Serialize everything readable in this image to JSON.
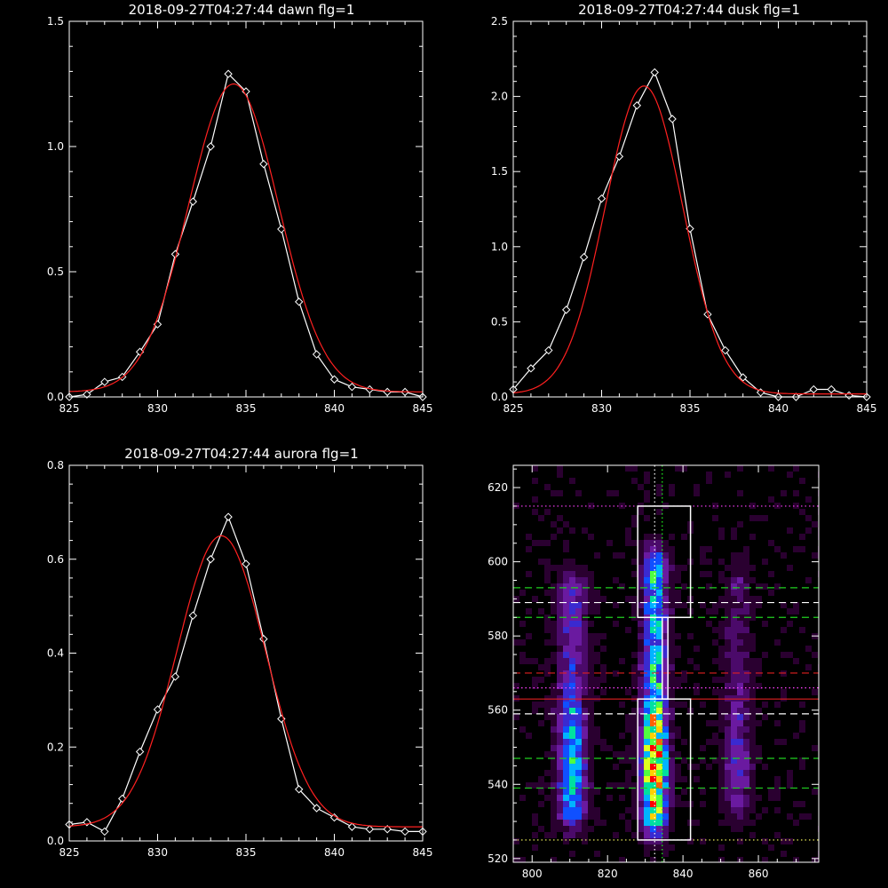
{
  "chart_data": [
    {
      "id": "dawn",
      "type": "line",
      "title": "2018-09-27T04:27:44 dawn flg=1",
      "xlim": [
        825,
        845
      ],
      "ylim": [
        0,
        1.5
      ],
      "xticks": [
        "825",
        "830",
        "835",
        "840",
        "845"
      ],
      "yticks": [
        "0.0",
        "0.5",
        "1.0",
        "1.5"
      ],
      "series": [
        {
          "kind": "observed",
          "color": "#ffffff",
          "marker": "diamond",
          "x": [
            825,
            826,
            827,
            828,
            829,
            830,
            831,
            832,
            833,
            834,
            835,
            836,
            837,
            838,
            839,
            840,
            841,
            842,
            843,
            844,
            845
          ],
          "y": [
            0.0,
            0.01,
            0.06,
            0.08,
            0.18,
            0.29,
            0.57,
            0.78,
            1.0,
            1.29,
            1.22,
            0.93,
            0.67,
            0.38,
            0.17,
            0.07,
            0.04,
            0.03,
            0.02,
            0.02,
            0.0
          ]
        },
        {
          "kind": "fit",
          "color": "#ff2020",
          "gauss": {
            "amp": 1.23,
            "center": 834.3,
            "sigma": 2.55,
            "offset": 0.02
          }
        }
      ]
    },
    {
      "id": "dusk",
      "type": "line",
      "title": "2018-09-27T04:27:44 dusk flg=1",
      "xlim": [
        825,
        845
      ],
      "ylim": [
        0,
        2.5
      ],
      "xticks": [
        "825",
        "830",
        "835",
        "840",
        "845"
      ],
      "yticks": [
        "0.0",
        "0.5",
        "1.0",
        "1.5",
        "2.0",
        "2.5"
      ],
      "series": [
        {
          "kind": "observed",
          "color": "#ffffff",
          "marker": "diamond",
          "x": [
            825,
            826,
            827,
            828,
            829,
            830,
            831,
            832,
            833,
            834,
            835,
            836,
            837,
            838,
            839,
            840,
            841,
            842,
            843,
            844,
            845
          ],
          "y": [
            0.05,
            0.19,
            0.31,
            0.58,
            0.93,
            1.32,
            1.6,
            1.94,
            2.16,
            1.85,
            1.12,
            0.55,
            0.31,
            0.13,
            0.03,
            0.0,
            0.0,
            0.05,
            0.05,
            0.01,
            0.0
          ]
        },
        {
          "kind": "fit",
          "color": "#ff2020",
          "gauss": {
            "amp": 2.05,
            "center": 832.4,
            "sigma": 2.2,
            "offset": 0.02
          }
        }
      ]
    },
    {
      "id": "aurora",
      "type": "line",
      "title": "2018-09-27T04:27:44 aurora flg=1",
      "xlim": [
        825,
        845
      ],
      "ylim": [
        0,
        0.8
      ],
      "xticks": [
        "825",
        "830",
        "835",
        "840",
        "845"
      ],
      "yticks": [
        "0.0",
        "0.2",
        "0.4",
        "0.6",
        "0.8"
      ],
      "series": [
        {
          "kind": "observed",
          "color": "#ffffff",
          "marker": "diamond",
          "x": [
            825,
            826,
            827,
            828,
            829,
            830,
            831,
            832,
            833,
            834,
            835,
            836,
            837,
            838,
            839,
            840,
            841,
            842,
            843,
            844,
            845
          ],
          "y": [
            0.035,
            0.04,
            0.02,
            0.09,
            0.19,
            0.28,
            0.35,
            0.48,
            0.6,
            0.69,
            0.59,
            0.43,
            0.26,
            0.11,
            0.07,
            0.05,
            0.03,
            0.025,
            0.025,
            0.02,
            0.02
          ]
        },
        {
          "kind": "fit",
          "color": "#ff2020",
          "gauss": {
            "amp": 0.62,
            "center": 833.6,
            "sigma": 2.5,
            "offset": 0.03
          }
        }
      ]
    },
    {
      "id": "image",
      "type": "heatmap",
      "xlim": [
        795,
        876
      ],
      "ylim": [
        519,
        626
      ],
      "xticks": [
        "800",
        "820",
        "840",
        "860"
      ],
      "yticks": [
        "520",
        "540",
        "560",
        "580",
        "600",
        "620"
      ],
      "colormap": [
        "#000000",
        "#2a0030",
        "#4b0a6a",
        "#6a1aa0",
        "#3a2ad0",
        "#1050ff",
        "#00b4ff",
        "#00e0a0",
        "#50ff40",
        "#e0ff20",
        "#ffd000",
        "#ff6000",
        "#ff0000"
      ],
      "bands": [
        {
          "x": 810.5,
          "w": 2.6,
          "y0": 527,
          "y1": 598,
          "peak": 0.55
        },
        {
          "x": 832.5,
          "w": 2.3,
          "y0": 525,
          "y1": 604,
          "peak": 0.95
        },
        {
          "x": 854.5,
          "w": 2.5,
          "y0": 530,
          "y1": 600,
          "peak": 0.28
        }
      ],
      "boxes": [
        {
          "x0": 828,
          "x1": 842,
          "y0": 585,
          "y1": 615
        },
        {
          "x0": 828,
          "x1": 842,
          "y0": 525,
          "y1": 563
        },
        {
          "x0": 834.5,
          "x1": 836,
          "y0": 563,
          "y1": 585
        }
      ],
      "hlines": [
        {
          "y": 615,
          "color": "#ff40ff",
          "dash": "dotted"
        },
        {
          "y": 593,
          "color": "#20d020",
          "dash": "dashed"
        },
        {
          "y": 589,
          "color": "#ffffff",
          "dash": "dashed"
        },
        {
          "y": 585,
          "color": "#20d020",
          "dash": "dashed"
        },
        {
          "y": 570,
          "color": "#e02020",
          "dash": "dashed"
        },
        {
          "y": 566,
          "color": "#ff40ff",
          "dash": "dotted"
        },
        {
          "y": 563,
          "color": "#e02020",
          "dash": "solid"
        },
        {
          "y": 559,
          "color": "#ffffff",
          "dash": "dashed"
        },
        {
          "y": 547,
          "color": "#20d020",
          "dash": "dashed"
        },
        {
          "y": 539,
          "color": "#20d020",
          "dash": "dashed"
        },
        {
          "y": 525,
          "color": "#ffff60",
          "dash": "dotted"
        }
      ],
      "vlines": [
        {
          "x": 832.5,
          "color": "#ffffff",
          "dash": "dotted"
        },
        {
          "x": 834.5,
          "color": "#20ff20",
          "dash": "dotted"
        }
      ]
    }
  ]
}
